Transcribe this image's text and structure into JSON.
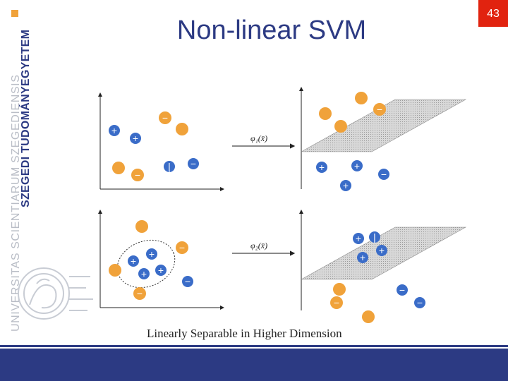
{
  "slide": {
    "title": "Non-linear SVM",
    "page_number": "43"
  },
  "branding": {
    "university_name": "SZEGEDI TUDOMÁNYEGYETEM",
    "motto": "UNIVERSITAS SCIENTIARUM SZEGEDIENSIS",
    "brand_color": "#2c3a83",
    "accent_color": "#f0a23a",
    "badge_color": "#e1230f"
  },
  "diagram": {
    "caption": "Linearly Separable in Higher Dimension",
    "map_labels": {
      "top": "φ₁(x̄)",
      "bottom": "φ₂(x̄)"
    },
    "symbols": {
      "plus": "+",
      "minus": "−",
      "bar": "|"
    },
    "colors": {
      "positive": "#3a6cc8",
      "negative": "#f0a23a",
      "plane": "#cfcfcf"
    }
  }
}
